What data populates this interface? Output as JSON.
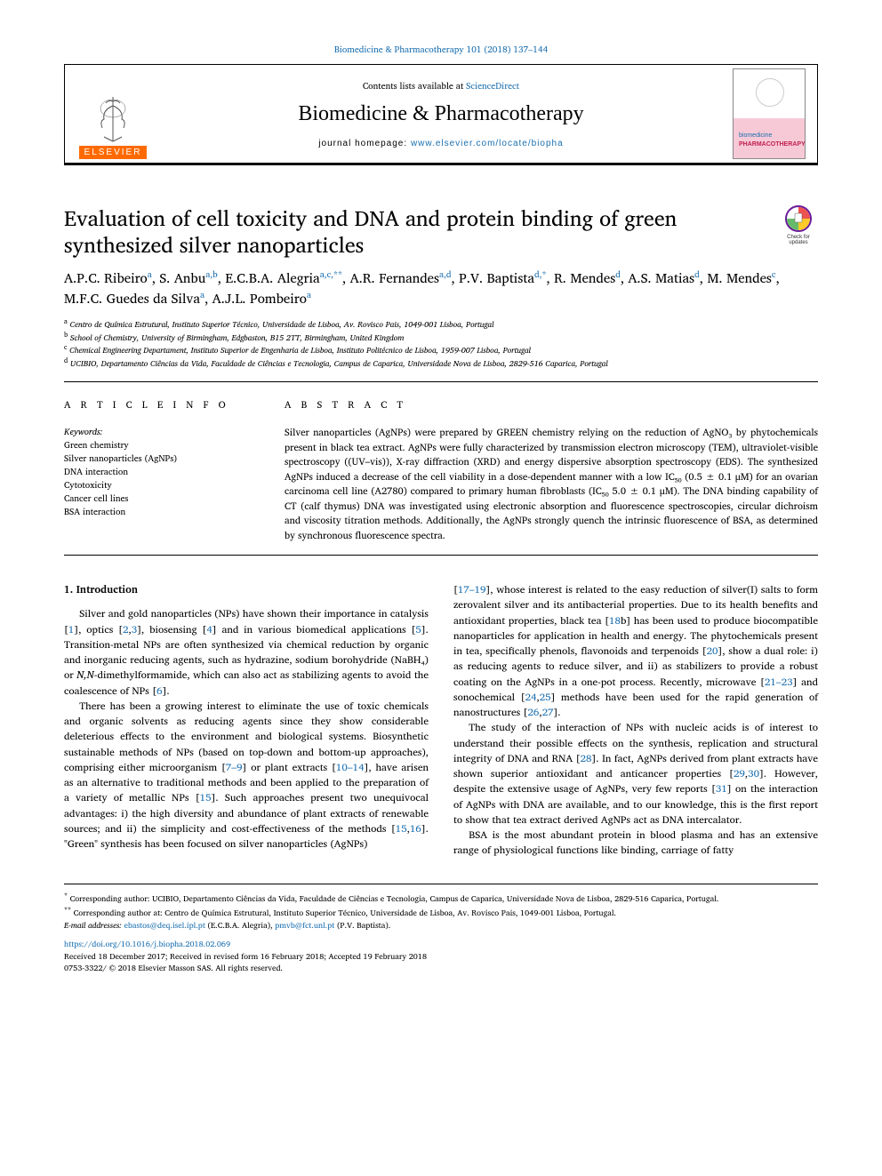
{
  "header": {
    "top_link": "Biomedicine & Pharmacotherapy 101 (2018) 137–144",
    "contents_prefix": "Contents lists available at ",
    "contents_link": "ScienceDirect",
    "journal_name": "Biomedicine & Pharmacotherapy",
    "homepage_prefix": "journal homepage: ",
    "homepage_url": "www.elsevier.com/locate/biopha",
    "elsevier_label": "ELSEVIER",
    "cover_text1": "biomedicine",
    "cover_text2": "PHARMACOTHERAPY"
  },
  "check_updates": "Check for updates",
  "title": "Evaluation of cell toxicity and DNA and protein binding of green synthesized silver nanoparticles",
  "authors": "A.P.C. Ribeiro<sup>a</sup>, S. Anbu<sup>a,b</sup>, E.C.B.A. Alegria<sup>a,c,**</sup>, A.R. Fernandes<sup>a,d</sup>, P.V. Baptista<sup>d,*</sup>, R. Mendes<sup>d</sup>, A.S. Matias<sup>d</sup>, M. Mendes<sup>c</sup>, M.F.C. Guedes da Silva<sup>a</sup>, A.J.L. Pombeiro<sup>a</sup>",
  "affiliations": {
    "a": "Centro de Química Estrutural, Instituto Superior Técnico, Universidade de Lisboa, Av. Rovisco Pais, 1049-001 Lisboa, Portugal",
    "b": "School of Chemistry, University of Birmingham, Edgbaston, B15 2TT, Birmingham, United Kingdom",
    "c": "Chemical Engineering Departament, Instituto Superior de Engenharia de Lisboa, Instituto Politécnico de Lisboa, 1959-007 Lisboa, Portugal",
    "d": "UCIBIO, Departamento Ciências da Vida, Faculdade de Ciências e Tecnologia, Campus de Caparica, Universidade Nova de Lisboa, 2829-516 Caparica, Portugal"
  },
  "article_info": {
    "heading": "A R T I C L E  I N F O",
    "keywords_label": "Keywords:",
    "keywords": [
      "Green chemistry",
      "Silver nanoparticles (AgNPs)",
      "DNA interaction",
      "Cytotoxicity",
      "Cancer cell lines",
      "BSA interaction"
    ]
  },
  "abstract": {
    "heading": "A B S T R A C T",
    "text": "Silver nanoparticles (AgNPs) were prepared by GREEN chemistry relying on the reduction of AgNO₃ by phytochemicals present in black tea extract. AgNPs were fully characterized by transmission electron microscopy (TEM), ultraviolet-visible spectroscopy ((UV–vis)), X-ray diffraction (XRD) and energy dispersive absorption spectroscopy (EDS). The synthesized AgNPs induced a decrease of the cell viability in a dose-dependent manner with a low IC₅₀ (0.5 ± 0.1 μM) for an ovarian carcinoma cell line (A2780) compared to primary human fibroblasts (IC₅₀ 5.0 ± 0.1 μM). The DNA binding capability of CT (calf thymus) DNA was investigated using electronic absorption and fluorescence spectroscopies, circular dichroism and viscosity titration methods. Additionally, the AgNPs strongly quench the intrinsic fluorescence of BSA, as determined by synchronous fluorescence spectra."
  },
  "body": {
    "heading": "1. Introduction",
    "p1": "Silver and gold nanoparticles (NPs) have shown their importance in catalysis [<a>1</a>], optics [<a>2</a>,<a>3</a>], biosensing [<a>4</a>] and in various biomedical applications [<a>5</a>]. Transition-metal NPs are often synthesized via chemical reduction by organic and inorganic reducing agents, such as hydrazine, sodium borohydride (NaBH₄) or <i>N,N</i>-dimethylformamide, which can also act as stabilizing agents to avoid the coalescence of NPs [<a>6</a>].",
    "p2": "There has been a growing interest to eliminate the use of toxic chemicals and organic solvents as reducing agents since they show considerable deleterious effects to the environment and biological systems. Biosynthetic sustainable methods of NPs (based on top-down and bottom-up approaches), comprising either microorganism [<a>7–9</a>] or plant extracts [<a>10–14</a>], have arisen as an alternative to traditional methods and been applied to the preparation of a variety of metallic NPs [<a>15</a>]. Such approaches present two unequivocal advantages: i) the high diversity and abundance of plant extracts of renewable sources; and ii) the simplicity and cost-effectiveness of the methods [<a>15</a>,<a>16</a>]. \"Green\" synthesis has been focused on silver nanoparticles (AgNPs)",
    "p3": "[<a>17–19</a>], whose interest is related to the easy reduction of silver(I) salts to form zerovalent silver and its antibacterial properties. Due to its health benefits and antioxidant properties, black tea [<a>18</a>b] has been used to produce biocompatible nanoparticles for application in health and energy. The phytochemicals present in tea, specifically phenols, flavonoids and terpenoids [<a>20</a>], show a dual role: i) as reducing agents to reduce silver, and ii) as stabilizers to provide a robust coating on the AgNPs in a one-pot process. Recently, microwave [<a>21–23</a>] and sonochemical [<a>24</a>,<a>25</a>] methods have been used for the rapid generation of nanostructures [<a>26</a>,<a>27</a>].",
    "p4": "The study of the interaction of NPs with nucleic acids is of interest to understand their possible effects on the synthesis, replication and structural integrity of DNA and RNA [<a>28</a>]. In fact, AgNPs derived from plant extracts have shown superior antioxidant and anticancer properties [<a>29</a>,<a>30</a>]. However, despite the extensive usage of AgNPs, very few reports [<a>31</a>] on the interaction of AgNPs with DNA are available, and to our knowledge, this is the first report to show that tea extract derived AgNPs act as DNA intercalator.",
    "p5": "BSA is the most abundant protein in blood plasma and has an extensive range of physiological functions like binding, carriage of fatty"
  },
  "footnotes": {
    "corr1": "Corresponding author: UCIBIO, Departamento Ciências da Vida, Faculdade de Ciências e Tecnologia, Campus de Caparica, Universidade Nova de Lisboa, 2829-516 Caparica, Portugal.",
    "corr2": "Corresponding author at: Centro de Química Estrutural, Instituto Superior Técnico, Universidade de Lisboa, Av. Rovisco Pais, 1049-001 Lisboa, Portugal.",
    "emails_label": "E-mail addresses: ",
    "email1": "ebastos@deq.isel.ipl.pt",
    "email1_person": " (E.C.B.A. Alegria), ",
    "email2": "pmvb@fct.unl.pt",
    "email2_person": " (P.V. Baptista).",
    "doi": "https://doi.org/10.1016/j.biopha.2018.02.069",
    "received": "Received 18 December 2017; Received in revised form 16 February 2018; Accepted 19 February 2018",
    "copyright": "0753-3322/ © 2018 Elsevier Masson SAS. All rights reserved."
  }
}
